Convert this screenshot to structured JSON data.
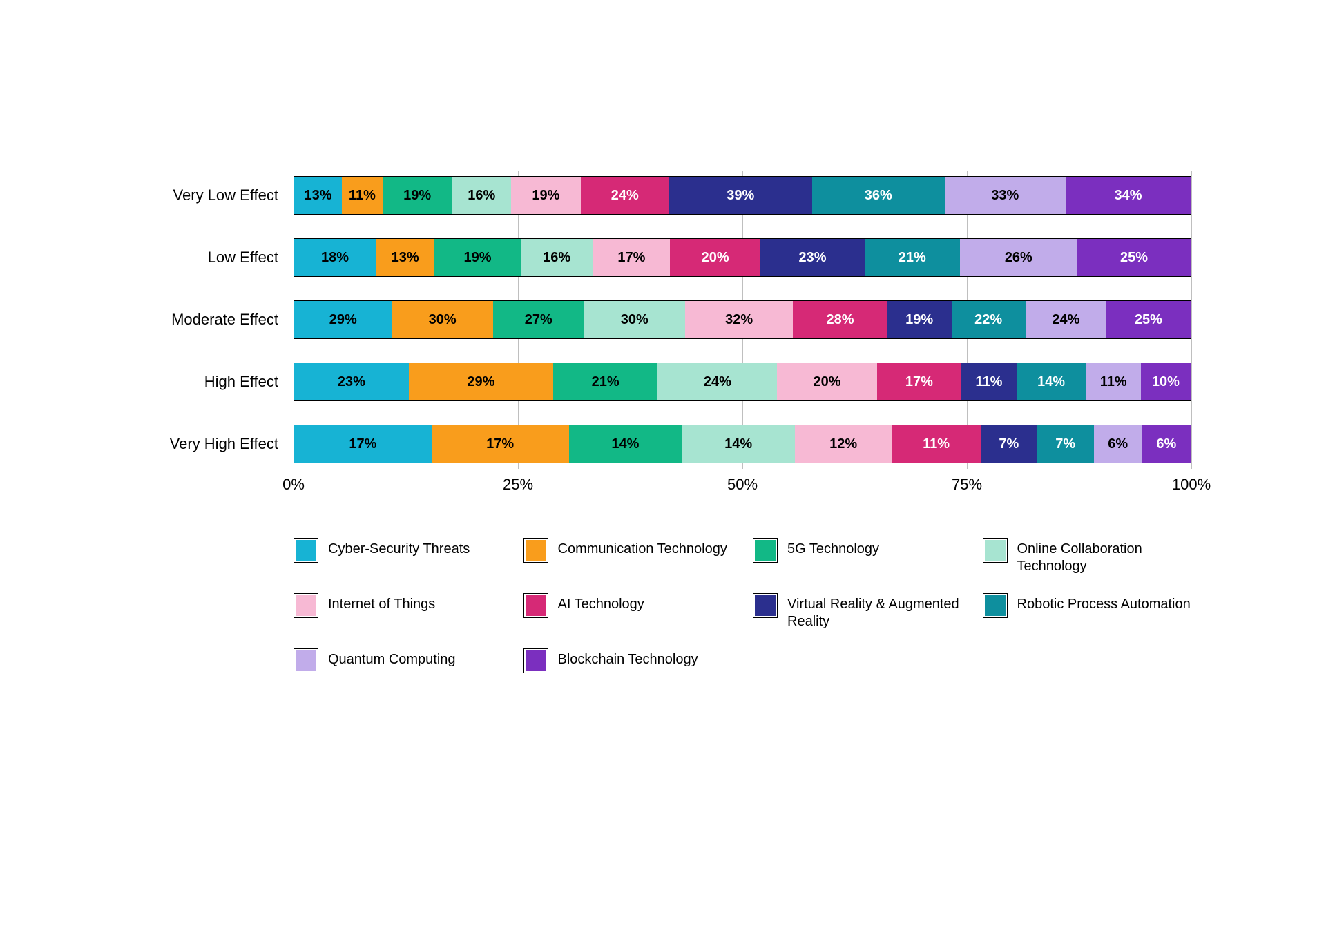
{
  "chart": {
    "type": "stacked-bar-normalized",
    "background_color": "#ffffff",
    "text_color": "#000000",
    "bar_border_color": "#000000",
    "grid_color": "#bfbfbf",
    "font_family": "sans-serif",
    "category_label_fontsize": 22,
    "segment_label_fontsize": 20,
    "segment_label_fontweight": "700",
    "xticks": [
      "0%",
      "25%",
      "50%",
      "75%",
      "100%"
    ],
    "xtick_positions_pct": [
      0,
      25,
      50,
      75,
      100
    ],
    "series": [
      {
        "id": "cyber",
        "label": "Cyber-Security Threats",
        "color": "#17b3d4",
        "label_color": "#000000"
      },
      {
        "id": "comm",
        "label": "Communication Technology",
        "color": "#f99d1c",
        "label_color": "#000000"
      },
      {
        "id": "fiveg",
        "label": "5G Technology",
        "color": "#12b886",
        "label_color": "#000000"
      },
      {
        "id": "collab",
        "label": "Online Collaboration Technology",
        "color": "#a7e4d1",
        "label_color": "#000000"
      },
      {
        "id": "iot",
        "label": "Internet of Things",
        "color": "#f7b9d4",
        "label_color": "#000000"
      },
      {
        "id": "ai",
        "label": "AI Technology",
        "color": "#d62976",
        "label_color": "#ffffff"
      },
      {
        "id": "vrar",
        "label": "Virtual Reality & Augmented Reality",
        "color": "#2b2f8e",
        "label_color": "#ffffff"
      },
      {
        "id": "rpa",
        "label": "Robotic Process Automation",
        "color": "#0e8f9e",
        "label_color": "#ffffff"
      },
      {
        "id": "quantum",
        "label": "Quantum Computing",
        "color": "#c1acea",
        "label_color": "#000000"
      },
      {
        "id": "block",
        "label": "Blockchain Technology",
        "color": "#7b2fbf",
        "label_color": "#ffffff"
      }
    ],
    "categories": [
      {
        "label": "Very Low Effect",
        "values": [
          13,
          11,
          19,
          16,
          19,
          24,
          39,
          36,
          33,
          34
        ]
      },
      {
        "label": "Low Effect",
        "values": [
          18,
          13,
          19,
          16,
          17,
          20,
          23,
          21,
          26,
          25
        ]
      },
      {
        "label": "Moderate Effect",
        "values": [
          29,
          30,
          27,
          30,
          32,
          28,
          19,
          22,
          24,
          25
        ]
      },
      {
        "label": "High Effect",
        "values": [
          23,
          29,
          21,
          24,
          20,
          17,
          11,
          14,
          11,
          10
        ]
      },
      {
        "label": "Very High Effect",
        "values": [
          17,
          17,
          14,
          14,
          12,
          11,
          7,
          7,
          6,
          6
        ]
      }
    ],
    "legend_grid_cells": [
      "cyber",
      "comm",
      "fiveg",
      "collab",
      "iot",
      "ai",
      "vrar",
      "rpa",
      "quantum",
      "block"
    ]
  }
}
